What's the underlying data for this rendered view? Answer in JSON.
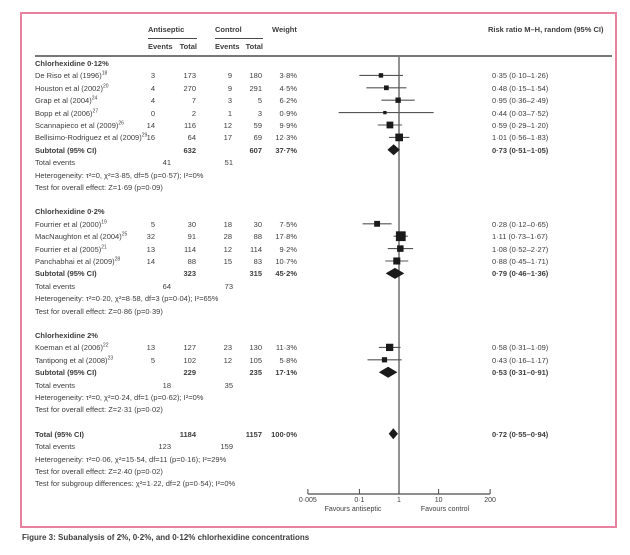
{
  "colors": {
    "border_pink": "#e8829e",
    "text": "#3d3d3d",
    "marker": "#1a1a1a",
    "ci_line": "#555555",
    "rule": "#4a4a4a"
  },
  "figure": {
    "caption": "Figure 3: Subanalysis of 2%, 0·2%, and 0·12% chlorhexidine concentrations",
    "header": {
      "antiseptic": "Antiseptic",
      "control": "Control",
      "events": "Events",
      "total": "Total",
      "weight": "Weight",
      "risk_ratio": "Risk ratio M–H, random (95% CI)"
    }
  },
  "chart_data": {
    "type": "forest",
    "effect_measure": "Risk ratio M–H, random (95% CI)",
    "axis": {
      "scale": "log",
      "min": 0.005,
      "max": 200,
      "null_value": 1,
      "ticks": [
        0.005,
        0.1,
        1,
        10,
        200
      ],
      "tick_labels": [
        "0·005",
        "0·1",
        "1",
        "10",
        "200"
      ],
      "favours_left": "Favours antiseptic",
      "favours_right": "Favours control"
    },
    "row_labels": {
      "subtotal": "Subtotal (95% CI)",
      "total_events": "Total events",
      "total": "Total (95% CI)"
    },
    "groups": [
      {
        "label": "Chlorhexidine 0·12%",
        "studies": [
          {
            "name": "De Riso et al (1996)",
            "ref": "18",
            "ant_events": 3,
            "ant_total": 173,
            "ctl_events": 9,
            "ctl_total": 180,
            "weight": "3·8%",
            "rr": 0.35,
            "ci_lo": 0.1,
            "ci_hi": 1.26,
            "rr_text": "0·35 (0·10–1·26)"
          },
          {
            "name": "Houston et al (2002)",
            "ref": "20",
            "ant_events": 4,
            "ant_total": 270,
            "ctl_events": 9,
            "ctl_total": 291,
            "weight": "4·5%",
            "rr": 0.48,
            "ci_lo": 0.15,
            "ci_hi": 1.54,
            "rr_text": "0·48 (0·15–1·54)"
          },
          {
            "name": "Grap et al (2004)",
            "ref": "24",
            "ant_events": 4,
            "ant_total": 7,
            "ctl_events": 3,
            "ctl_total": 5,
            "weight": "6·2%",
            "rr": 0.95,
            "ci_lo": 0.36,
            "ci_hi": 2.49,
            "rr_text": "0·95 (0·36–2·49)"
          },
          {
            "name": "Bopp et al (2006)",
            "ref": "27",
            "ant_events": 0,
            "ant_total": 2,
            "ctl_events": 1,
            "ctl_total": 3,
            "weight": "0·9%",
            "rr": 0.44,
            "ci_lo": 0.03,
            "ci_hi": 7.52,
            "rr_text": "0·44 (0·03–7·52)"
          },
          {
            "name": "Scannapieco et al (2009)",
            "ref": "26",
            "ant_events": 14,
            "ant_total": 116,
            "ctl_events": 12,
            "ctl_total": 59,
            "weight": "9·9%",
            "rr": 0.59,
            "ci_lo": 0.29,
            "ci_hi": 1.2,
            "rr_text": "0·59 (0·29–1·20)"
          },
          {
            "name": "Bellisimo-Rodriguez et al (2009)",
            "ref": "29",
            "ant_events": 16,
            "ant_total": 64,
            "ctl_events": 17,
            "ctl_total": 69,
            "weight": "12·3%",
            "rr": 1.01,
            "ci_lo": 0.56,
            "ci_hi": 1.83,
            "rr_text": "1·01 (0·56–1·83)"
          }
        ],
        "subtotal": {
          "ant_total": 632,
          "ctl_total": 607,
          "weight": "37·7%",
          "rr": 0.73,
          "ci_lo": 0.51,
          "ci_hi": 1.05,
          "rr_text": "0·73 (0·51–1·05)"
        },
        "total_events": {
          "ant": 41,
          "ctl": 51
        },
        "heterogeneity": "Heterogeneity: τ²=0, χ²=3·85, df=5 (p=0·57); I²=0%",
        "overall_effect": "Test for overall effect: Z=1·69 (p=0·09)"
      },
      {
        "label": "Chlorhexidine 0·2%",
        "studies": [
          {
            "name": "Fourrier et al (2000)",
            "ref": "19",
            "ant_events": 5,
            "ant_total": 30,
            "ctl_events": 18,
            "ctl_total": 30,
            "weight": "7·5%",
            "rr": 0.28,
            "ci_lo": 0.12,
            "ci_hi": 0.65,
            "rr_text": "0·28 (0·12–0·65)"
          },
          {
            "name": "MacNaughton et al (2004)",
            "ref": "25",
            "ant_events": 32,
            "ant_total": 91,
            "ctl_events": 28,
            "ctl_total": 88,
            "weight": "17·8%",
            "rr": 1.11,
            "ci_lo": 0.73,
            "ci_hi": 1.67,
            "rr_text": "1·11 (0·73–1·67)"
          },
          {
            "name": "Fourrier et al (2005)",
            "ref": "21",
            "ant_events": 13,
            "ant_total": 114,
            "ctl_events": 12,
            "ctl_total": 114,
            "weight": "9·2%",
            "rr": 1.08,
            "ci_lo": 0.52,
            "ci_hi": 2.27,
            "rr_text": "1·08 (0·52–2·27)"
          },
          {
            "name": "Panchabhai et al (2009)",
            "ref": "28",
            "ant_events": 14,
            "ant_total": 88,
            "ctl_events": 15,
            "ctl_total": 83,
            "weight": "10·7%",
            "rr": 0.88,
            "ci_lo": 0.45,
            "ci_hi": 1.71,
            "rr_text": "0·88 (0·45–1·71)"
          }
        ],
        "subtotal": {
          "ant_total": 323,
          "ctl_total": 315,
          "weight": "45·2%",
          "rr": 0.79,
          "ci_lo": 0.46,
          "ci_hi": 1.36,
          "rr_text": "0·79 (0·46–1·36)"
        },
        "total_events": {
          "ant": 64,
          "ctl": 73
        },
        "heterogeneity": "Heterogeneity: τ²=0·20, χ²=8·58, df=3 (p=0·04); I²=65%",
        "overall_effect": "Test for overall effect: Z=0·86 (p=0·39)"
      },
      {
        "label": "Chlorhexidine 2%",
        "studies": [
          {
            "name": "Koeman et al (2006)",
            "ref": "22",
            "ant_events": 13,
            "ant_total": 127,
            "ctl_events": 23,
            "ctl_total": 130,
            "weight": "11·3%",
            "rr": 0.58,
            "ci_lo": 0.31,
            "ci_hi": 1.09,
            "rr_text": "0·58 (0·31–1·09)"
          },
          {
            "name": "Tantipong et al (2008)",
            "ref": "23",
            "ant_events": 5,
            "ant_total": 102,
            "ctl_events": 12,
            "ctl_total": 105,
            "weight": "5·8%",
            "rr": 0.43,
            "ci_lo": 0.16,
            "ci_hi": 1.17,
            "rr_text": "0·43 (0·16–1·17)"
          }
        ],
        "subtotal": {
          "ant_total": 229,
          "ctl_total": 235,
          "weight": "17·1%",
          "rr": 0.53,
          "ci_lo": 0.31,
          "ci_hi": 0.91,
          "rr_text": "0·53 (0·31–0·91)"
        },
        "total_events": {
          "ant": 18,
          "ctl": 35
        },
        "heterogeneity": "Heterogeneity: τ²=0, χ²=0·24, df=1 (p=0·62); I²=0%",
        "overall_effect": "Test for overall effect: Z=2·31 (p=0·02)"
      }
    ],
    "total": {
      "ant_total": 1184,
      "ctl_total": 1157,
      "weight": "100·0%",
      "rr": 0.72,
      "ci_lo": 0.55,
      "ci_hi": 0.94,
      "rr_text": "0·72 (0·55–0·94)",
      "total_events": {
        "ant": 123,
        "ctl": 159
      },
      "heterogeneity": "Heterogeneity: τ²=0·06, χ²=15·54, df=11 (p=0·16); I²=29%",
      "overall_effect": "Test for overall effect: Z=2·40 (p=0·02)",
      "subgroup_differences": "Test for subgroup differences: χ²=1·22, df=2 (p=0·54); I²=0%"
    }
  }
}
